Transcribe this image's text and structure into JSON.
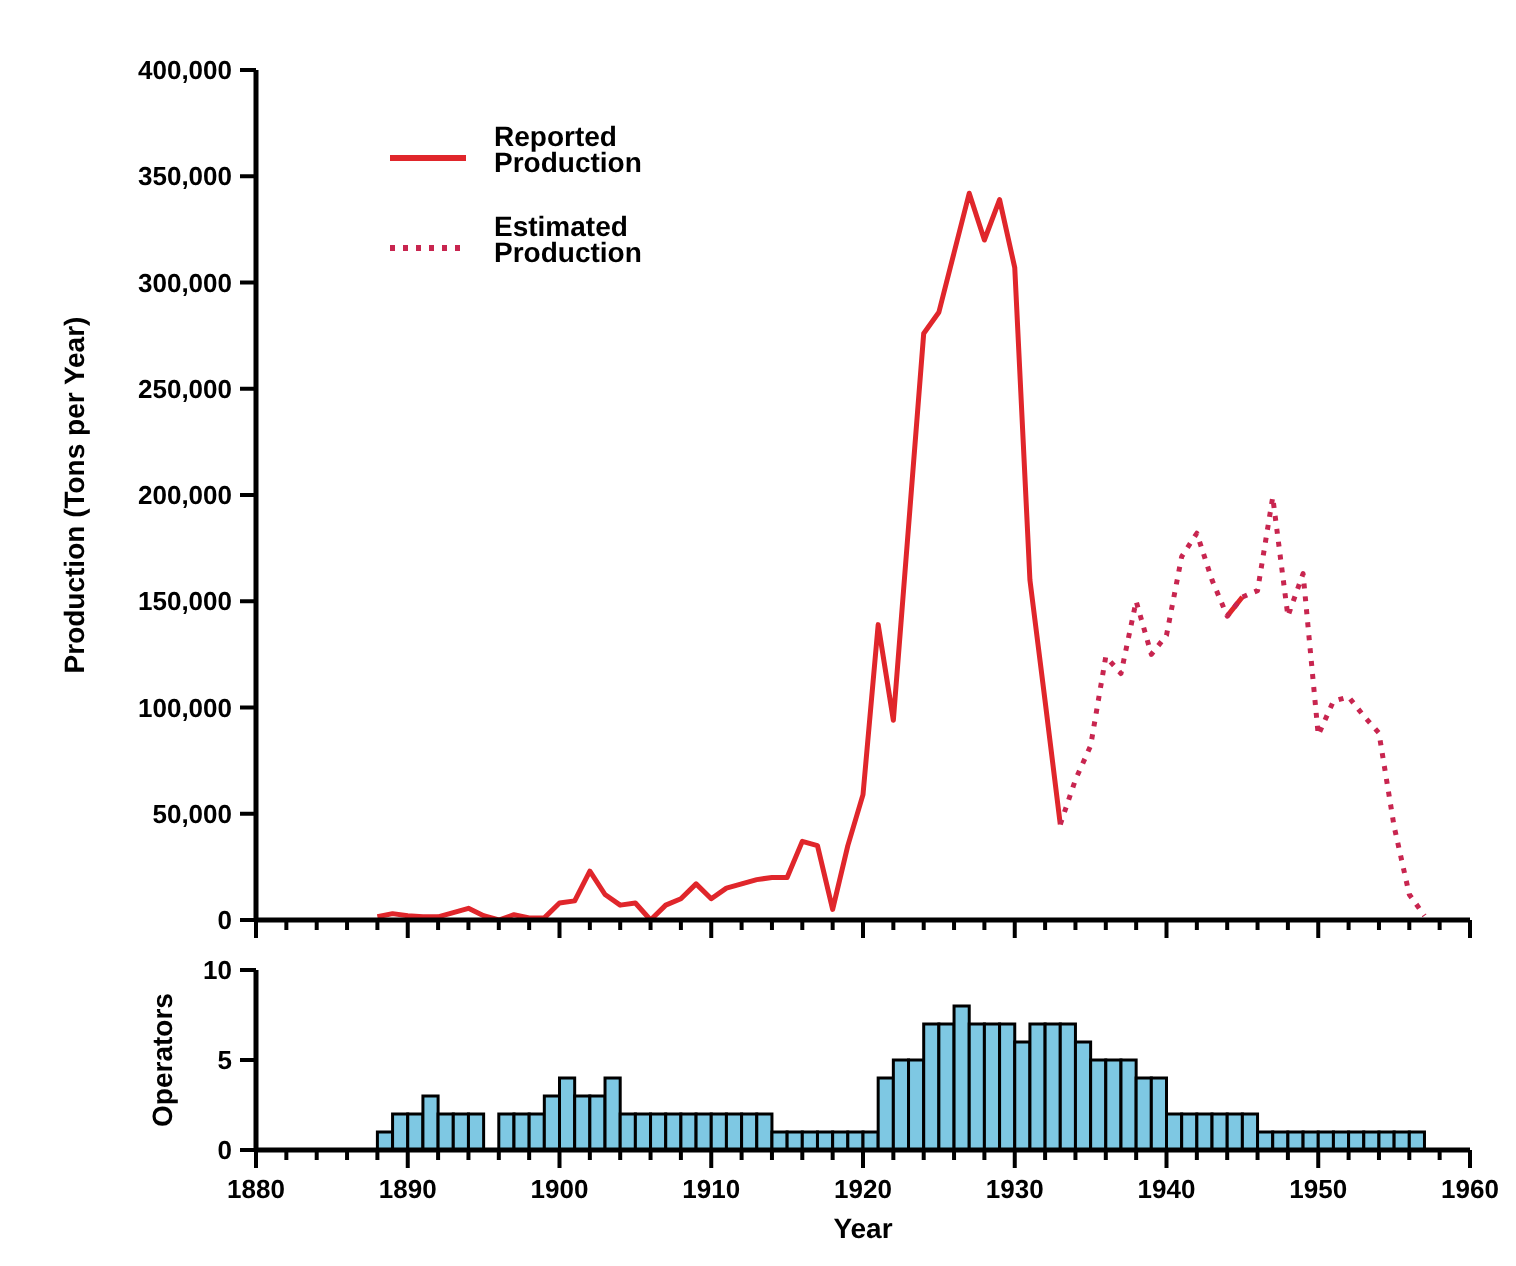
{
  "chart_data": [
    {
      "type": "line",
      "ylabel": "Production (Tons per Year)",
      "xlim": [
        1880,
        1960
      ],
      "ylim": [
        0,
        400000
      ],
      "xticks": [
        {
          "value": 1880,
          "label": null
        },
        {
          "value": 1882,
          "label": null
        },
        {
          "value": 1884,
          "label": null
        },
        {
          "value": 1886,
          "label": null
        },
        {
          "value": 1888,
          "label": null
        },
        {
          "value": 1890,
          "label": null
        },
        {
          "value": 1892,
          "label": null
        },
        {
          "value": 1894,
          "label": null
        },
        {
          "value": 1896,
          "label": null
        },
        {
          "value": 1898,
          "label": null
        },
        {
          "value": 1900,
          "label": null
        },
        {
          "value": 1902,
          "label": null
        },
        {
          "value": 1904,
          "label": null
        },
        {
          "value": 1906,
          "label": null
        },
        {
          "value": 1908,
          "label": null
        },
        {
          "value": 1910,
          "label": null
        },
        {
          "value": 1912,
          "label": null
        },
        {
          "value": 1914,
          "label": null
        },
        {
          "value": 1916,
          "label": null
        },
        {
          "value": 1918,
          "label": null
        },
        {
          "value": 1920,
          "label": null
        },
        {
          "value": 1922,
          "label": null
        },
        {
          "value": 1924,
          "label": null
        },
        {
          "value": 1926,
          "label": null
        },
        {
          "value": 1928,
          "label": null
        },
        {
          "value": 1930,
          "label": null
        },
        {
          "value": 1932,
          "label": null
        },
        {
          "value": 1934,
          "label": null
        },
        {
          "value": 1936,
          "label": null
        },
        {
          "value": 1938,
          "label": null
        },
        {
          "value": 1940,
          "label": null
        },
        {
          "value": 1942,
          "label": null
        },
        {
          "value": 1944,
          "label": null
        },
        {
          "value": 1946,
          "label": null
        },
        {
          "value": 1948,
          "label": null
        },
        {
          "value": 1950,
          "label": null
        },
        {
          "value": 1952,
          "label": null
        },
        {
          "value": 1954,
          "label": null
        },
        {
          "value": 1956,
          "label": null
        },
        {
          "value": 1958,
          "label": null
        },
        {
          "value": 1960,
          "label": null
        }
      ],
      "yticks": [
        0,
        {
          "value": 50000,
          "label": "50,000"
        },
        {
          "value": 100000,
          "label": "100,000"
        },
        {
          "value": 150000,
          "label": "150,000"
        },
        {
          "value": 200000,
          "label": "200,000"
        },
        {
          "value": 250000,
          "label": "250,000"
        },
        {
          "value": 300000,
          "label": "300,000"
        },
        {
          "value": 350000,
          "label": "350,000"
        },
        {
          "value": 400000,
          "label": "400,000"
        }
      ],
      "tick_labels": "y",
      "grid": false,
      "legend": "top left",
      "marker": "none",
      "series": [
        {
          "name": "Reported Production",
          "color": "#e0262b",
          "line_style": "solid",
          "x": [
            1888,
            1889,
            1890,
            1891,
            1892,
            1893,
            1894,
            1895,
            1896,
            1897,
            1898,
            1899,
            1900,
            1901,
            1902,
            1903,
            1904,
            1905,
            1906,
            1907,
            1908,
            1909,
            1910,
            1911,
            1912,
            1913,
            1914,
            1915,
            1916,
            1917,
            1918,
            1919,
            1920,
            1921,
            1922,
            1923,
            1924,
            1925,
            1926,
            1927,
            1928,
            1929,
            1930,
            1931,
            1932,
            1933,
            1934,
            1935,
            1936,
            1937,
            1938,
            1939,
            1940,
            1941,
            1942,
            1943,
            1944,
            1945
          ],
          "values": [
            1500,
            3000,
            2000,
            1500,
            1500,
            3500,
            5500,
            2000,
            0,
            2500,
            1000,
            1000,
            8000,
            9000,
            23000,
            12000,
            7000,
            8000,
            0,
            7000,
            10000,
            17000,
            10000,
            15000,
            17000,
            19000,
            20000,
            20000,
            37000,
            35000,
            5000,
            35000,
            59000,
            139000,
            94000,
            185000,
            276000,
            286000,
            314000,
            342000,
            320000,
            339000,
            307000,
            160000,
            103000,
            45000,
            null,
            null,
            null,
            null,
            null,
            null,
            null,
            null,
            null,
            null,
            143000,
            152000
          ]
        },
        {
          "name": "Estimated Production",
          "color": "#c8254f",
          "line_style": "dotted",
          "x": [
            1933,
            1934,
            1935,
            1936,
            1937,
            1938,
            1939,
            1940,
            1941,
            1942,
            1943,
            1944,
            1945,
            1946,
            1947,
            1948,
            1949,
            1950,
            1951,
            1952,
            1953,
            1954,
            1955,
            1956,
            1957
          ],
          "values": [
            45000,
            66000,
            82000,
            124000,
            116000,
            150000,
            125000,
            134000,
            171000,
            182000,
            160000,
            143000,
            152000,
            155000,
            199000,
            143000,
            163000,
            87000,
            103000,
            105000,
            96000,
            88000,
            44000,
            12000,
            2000
          ]
        }
      ]
    },
    {
      "type": "histogram",
      "xlabel": "Year",
      "ylabel": "Operators",
      "xlim": [
        1880,
        1960
      ],
      "ylim": [
        0,
        10
      ],
      "yticks": [
        0,
        5,
        10
      ],
      "color": "#7ec8e3",
      "grid": false,
      "xticks": [
        1880,
        {
          "value": 1882,
          "label": null
        },
        {
          "value": 1884,
          "label": null
        },
        {
          "value": 1886,
          "label": null
        },
        {
          "value": 1888,
          "label": null
        },
        1890,
        {
          "value": 1892,
          "label": null
        },
        {
          "value": 1894,
          "label": null
        },
        {
          "value": 1896,
          "label": null
        },
        {
          "value": 1898,
          "label": null
        },
        1900,
        {
          "value": 1902,
          "label": null
        },
        {
          "value": 1904,
          "label": null
        },
        {
          "value": 1906,
          "label": null
        },
        {
          "value": 1908,
          "label": null
        },
        1910,
        {
          "value": 1912,
          "label": null
        },
        {
          "value": 1914,
          "label": null
        },
        {
          "value": 1916,
          "label": null
        },
        {
          "value": 1918,
          "label": null
        },
        1920,
        {
          "value": 1922,
          "label": null
        },
        {
          "value": 1924,
          "label": null
        },
        {
          "value": 1926,
          "label": null
        },
        {
          "value": 1928,
          "label": null
        },
        1930,
        {
          "value": 1932,
          "label": null
        },
        {
          "value": 1934,
          "label": null
        },
        {
          "value": 1936,
          "label": null
        },
        {
          "value": 1938,
          "label": null
        },
        1940,
        {
          "value": 1942,
          "label": null
        },
        {
          "value": 1944,
          "label": null
        },
        {
          "value": 1946,
          "label": null
        },
        {
          "value": 1948,
          "label": null
        },
        1950,
        {
          "value": 1952,
          "label": null
        },
        {
          "value": 1954,
          "label": null
        },
        {
          "value": 1956,
          "label": null
        },
        {
          "value": 1958,
          "label": null
        },
        1960
      ],
      "bins": [
        1888,
        1889,
        1890,
        1891,
        1892,
        1893,
        1894,
        1895,
        1896,
        1897,
        1898,
        1899,
        1900,
        1901,
        1902,
        1903,
        1904,
        1905,
        1906,
        1907,
        1908,
        1909,
        1910,
        1911,
        1912,
        1913,
        1914,
        1915,
        1916,
        1917,
        1918,
        1919,
        1920,
        1921,
        1922,
        1923,
        1924,
        1925,
        1926,
        1927,
        1928,
        1929,
        1930,
        1931,
        1932,
        1933,
        1934,
        1935,
        1936,
        1937,
        1938,
        1939,
        1940,
        1941,
        1942,
        1943,
        1944,
        1945,
        1946,
        1947,
        1948,
        1949,
        1950,
        1951,
        1952,
        1953,
        1954,
        1955,
        1956,
        1957
      ],
      "values": [
        1,
        2,
        2,
        3,
        2,
        2,
        2,
        0,
        2,
        2,
        2,
        3,
        4,
        3,
        3,
        4,
        2,
        2,
        2,
        2,
        2,
        2,
        2,
        2,
        2,
        2,
        1,
        1,
        1,
        1,
        1,
        1,
        1,
        4,
        5,
        5,
        7,
        7,
        8,
        7,
        7,
        7,
        6,
        7,
        7,
        7,
        6,
        5,
        5,
        5,
        4,
        4,
        2,
        2,
        2,
        2,
        2,
        2,
        1,
        1,
        1,
        1,
        1,
        1,
        1,
        1,
        1,
        1,
        1
      ]
    }
  ]
}
